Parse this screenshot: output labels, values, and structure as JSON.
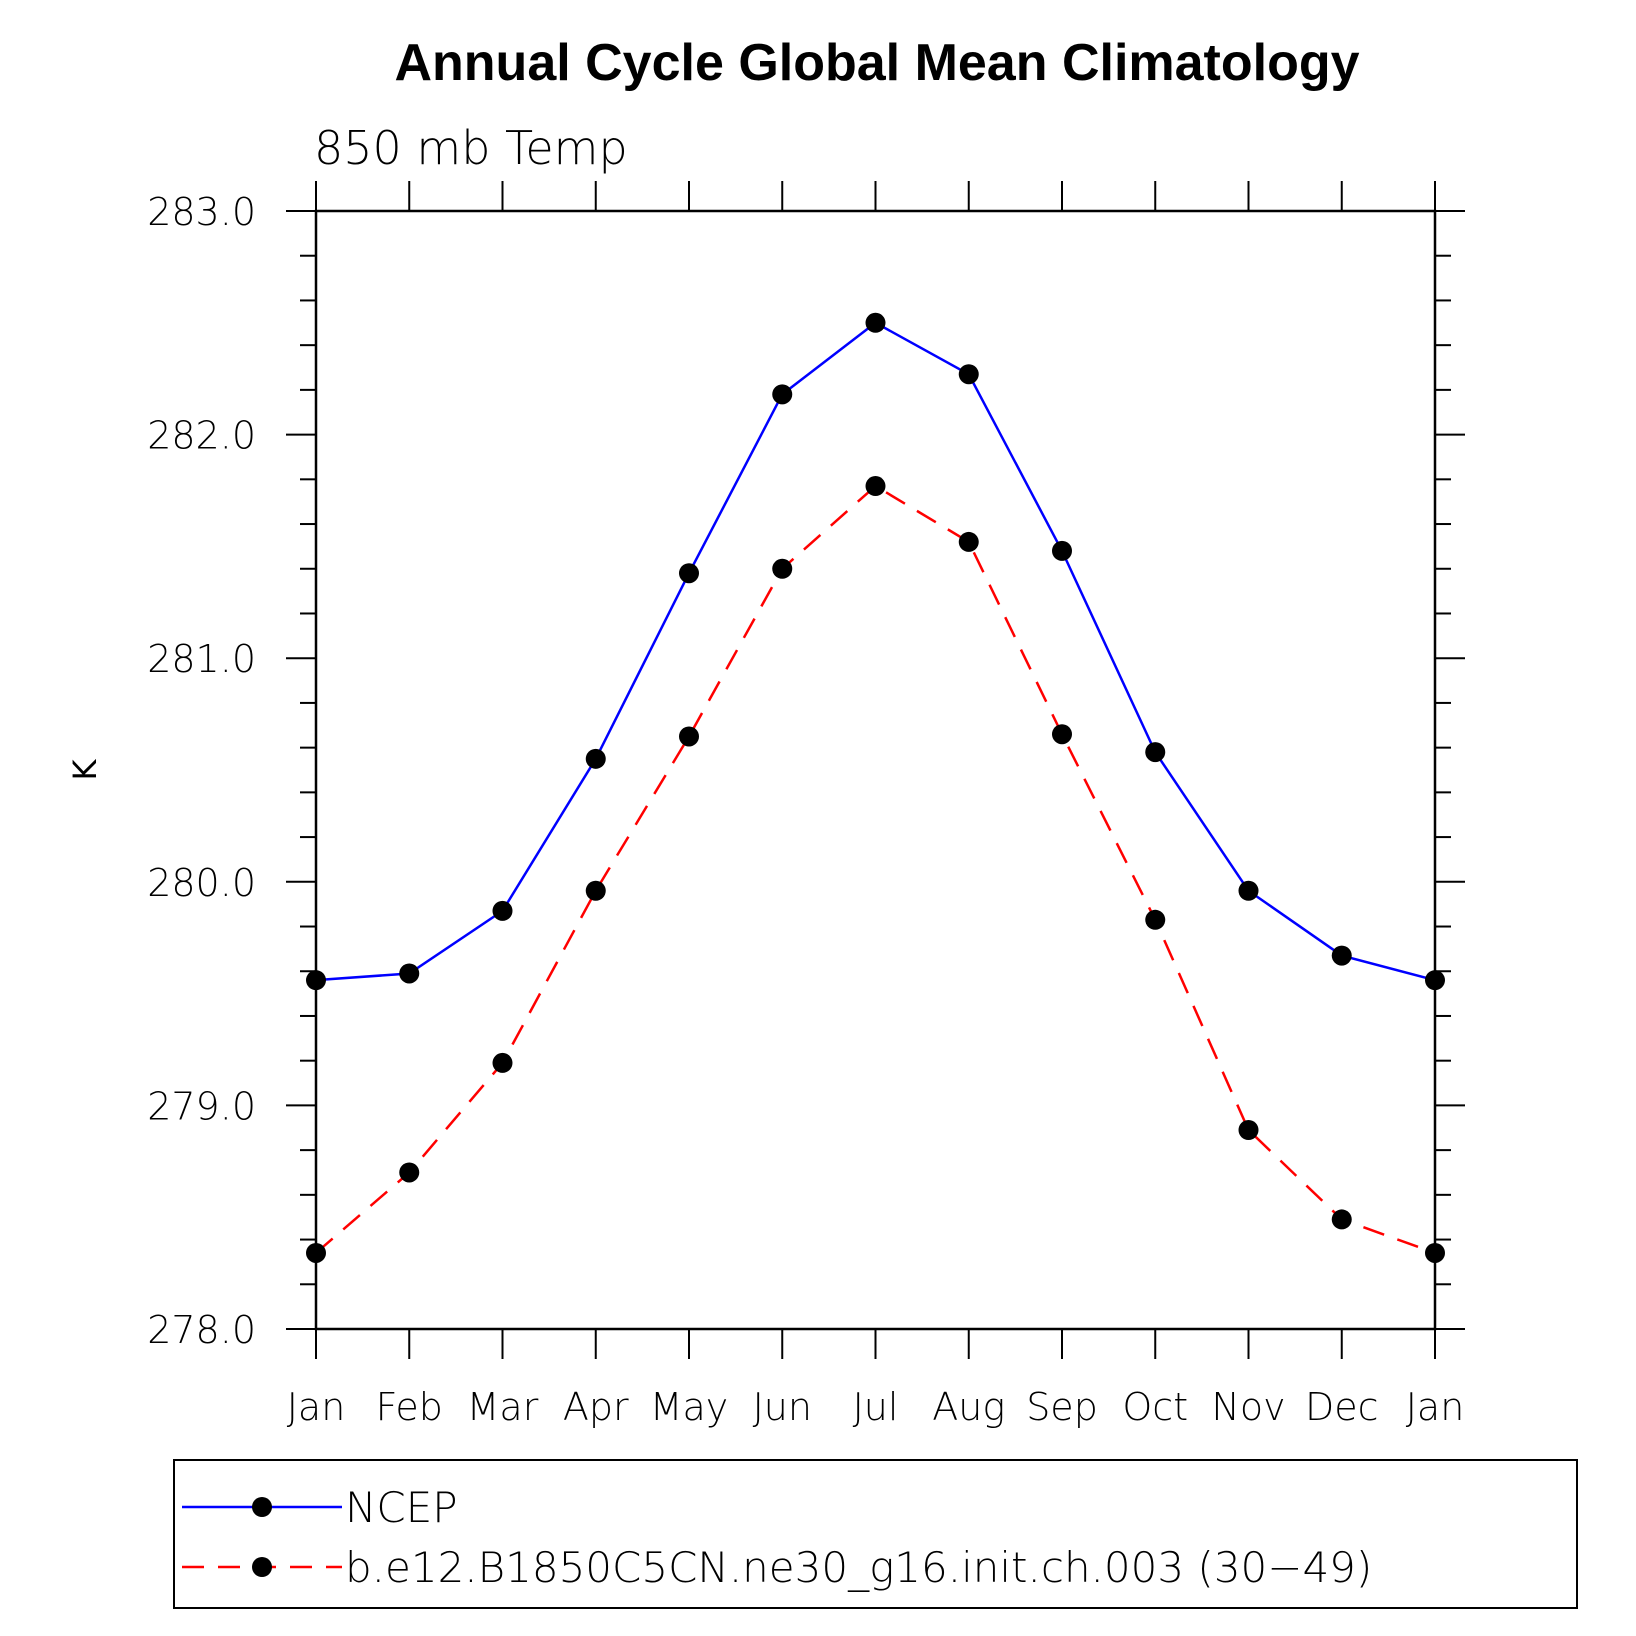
{
  "chart_data": {
    "type": "line",
    "title": "Annual Cycle Global Mean Climatology",
    "subtitle": "850 mb Temp",
    "ylabel": "K",
    "xlabel": "",
    "categories": [
      "Jan",
      "Feb",
      "Mar",
      "Apr",
      "May",
      "Jun",
      "Jul",
      "Aug",
      "Sep",
      "Oct",
      "Nov",
      "Dec",
      "Jan"
    ],
    "ylim": [
      278.0,
      283.0
    ],
    "yticks": [
      "278.0",
      "279.0",
      "280.0",
      "281.0",
      "282.0",
      "283.0"
    ],
    "grid": false,
    "legend_position": "bottom",
    "series": [
      {
        "name": "NCEP",
        "color": "#0000ff",
        "style": "solid",
        "values": [
          279.56,
          279.59,
          279.87,
          280.55,
          281.38,
          282.18,
          282.5,
          282.27,
          281.48,
          280.58,
          279.96,
          279.67,
          279.56
        ]
      },
      {
        "name": "b.e12.B1850C5CN.ne30_g16.init.ch.003 (30−49)",
        "color": "#ff0000",
        "style": "dashed",
        "values": [
          278.34,
          278.7,
          279.19,
          279.96,
          280.65,
          281.4,
          281.77,
          281.52,
          280.66,
          279.83,
          278.89,
          278.49,
          278.34
        ]
      }
    ]
  }
}
